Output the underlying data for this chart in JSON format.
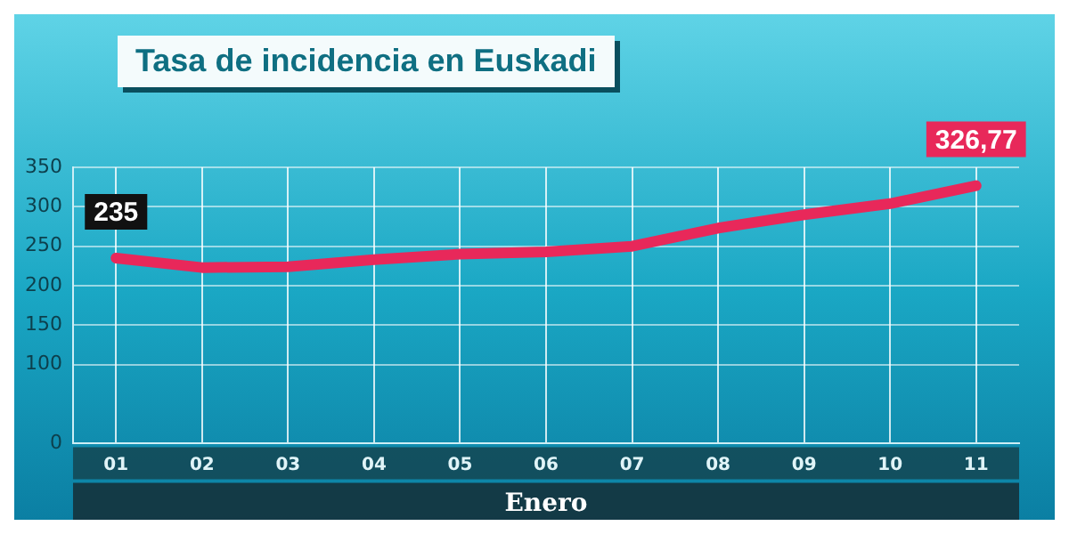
{
  "chart_data": {
    "type": "line",
    "title": "Tasa de incidencia en Euskadi",
    "xlabel": "Enero",
    "categories": [
      "01",
      "02",
      "03",
      "04",
      "05",
      "06",
      "07",
      "08",
      "09",
      "10",
      "11"
    ],
    "series": [
      {
        "color": "#e8285a",
        "values": [
          235,
          223,
          224,
          233,
          240,
          243,
          250,
          273,
          290,
          304,
          326.77
        ],
        "value_labels": [
          "235",
          null,
          null,
          null,
          null,
          null,
          null,
          null,
          null,
          null,
          "326,77"
        ]
      }
    ],
    "ylim": [
      0,
      350
    ],
    "yticks": [
      0,
      100,
      150,
      200,
      250,
      300,
      350
    ],
    "grid": true,
    "legend": false,
    "marker": "none",
    "line_style": "solid"
  }
}
